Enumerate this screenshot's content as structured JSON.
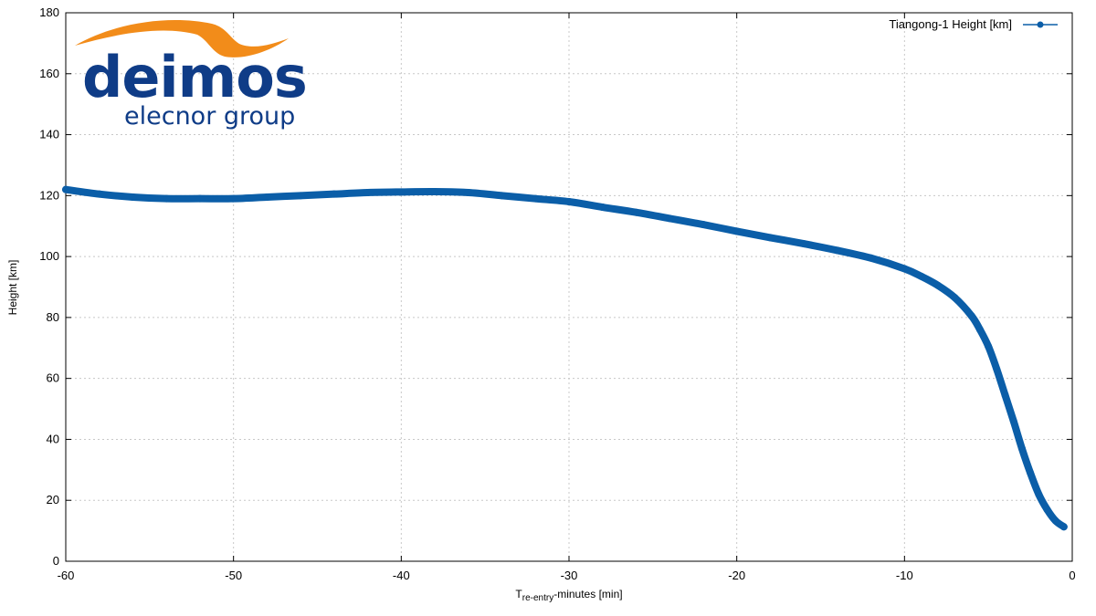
{
  "logo": {
    "name": "deimos",
    "subtitle": "elecnor group",
    "colors": {
      "blue": "#0f3c87",
      "orange": "#f28c1a"
    }
  },
  "chart_data": {
    "type": "line",
    "title": "",
    "xlabel_main": "T",
    "xlabel_sub": "re-entry",
    "xlabel_rest": "-minutes [min]",
    "ylabel": "Height [km]",
    "xlim": [
      -60,
      0
    ],
    "ylim": [
      0,
      180
    ],
    "xticks": [
      "-60",
      "-50",
      "-40",
      "-30",
      "-20",
      "-10",
      "0"
    ],
    "yticks": [
      "0",
      "20",
      "40",
      "60",
      "80",
      "100",
      "120",
      "140",
      "160",
      "180"
    ],
    "grid": true,
    "legend_position": "top-right",
    "series": [
      {
        "name": "Tiangong-1 Height [km]",
        "color": "#0b5ea8",
        "x": [
          -60,
          -58,
          -56,
          -54,
          -52,
          -50,
          -48,
          -46,
          -44,
          -42,
          -40,
          -38,
          -36,
          -34,
          -32,
          -30,
          -28,
          -26,
          -24,
          -22,
          -20,
          -18,
          -16,
          -14,
          -12,
          -10,
          -9,
          -8,
          -7,
          -6,
          -5.5,
          -5,
          -4.5,
          -4,
          -3.5,
          -3,
          -2.5,
          -2,
          -1.5,
          -1,
          -0.5
        ],
        "y": [
          122,
          120.5,
          119.5,
          119,
          119,
          119,
          119.5,
          120,
          120.5,
          121,
          121.2,
          121.3,
          121,
          120,
          119,
          118,
          116.2,
          114.5,
          112.5,
          110.5,
          108.3,
          106.2,
          104.2,
          102,
          99.5,
          96,
          93.5,
          90.5,
          86.5,
          80.5,
          76,
          70.5,
          63,
          54.5,
          46,
          37,
          29,
          22,
          17,
          13.3,
          11.3
        ]
      }
    ]
  }
}
